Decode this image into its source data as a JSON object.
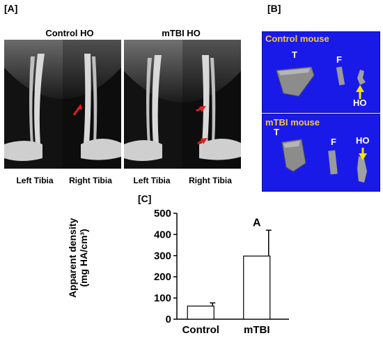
{
  "panels": {
    "a": {
      "label": "[A]",
      "left_header": "Control HO",
      "right_header": "mTBI HO",
      "tibia_labels": [
        "Left Tibia",
        "Right Tibia",
        "Left Tibia",
        "Right Tibia"
      ],
      "arrow_color": "#e02020"
    },
    "b": {
      "label": "[B]",
      "top_title": "Control mouse",
      "bottom_title": "mTBI mouse",
      "bone_t": "T",
      "bone_f": "F",
      "ho": "HO",
      "panel_color": "#1a1ae8",
      "title_color": "#f2c94c",
      "arrow_color": "#f2e600"
    },
    "c": {
      "label": "[C]"
    }
  },
  "chart_data": {
    "type": "bar",
    "categories": [
      "Control",
      "mTBI"
    ],
    "values": [
      62,
      298
    ],
    "error": [
      15,
      122
    ],
    "annotations": [
      "",
      "A"
    ],
    "ylabel_line1": "Apparent density",
    "ylabel_line2": "(mg HA/cm³)",
    "ylim": [
      0,
      500
    ],
    "yticks": [
      0,
      100,
      200,
      300,
      400,
      500
    ],
    "grid": false
  }
}
